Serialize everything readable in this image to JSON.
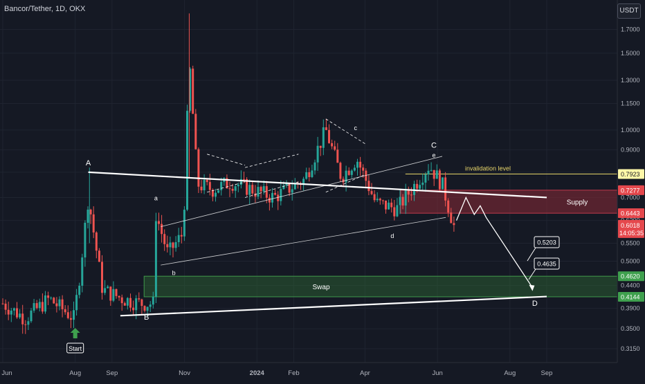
{
  "header": {
    "title": "Bancor/Tether, 1D, OKX",
    "currency_button": "USDT"
  },
  "colors": {
    "background": "#151924",
    "grid": "#1f2430",
    "axis_text": "#b2b5be",
    "candle_up": "#26a69a",
    "candle_down": "#ef5350",
    "supply_zone": "#8b2a36",
    "swap_zone": "#2e6b35",
    "invalidation_line": "#e8d66a",
    "wave_lines": "#ffffff"
  },
  "chart_data": {
    "type": "candlestick",
    "title": "Bancor/Tether, 1D, OKX",
    "scale": "log",
    "y_ticks": [
      "1.7000",
      "1.5000",
      "1.3000",
      "1.1500",
      "1.0000",
      "0.9000",
      "0.8000",
      "0.7000",
      "0.6200",
      "0.5500",
      "0.5000",
      "0.4400",
      "0.3900",
      "0.3500",
      "0.3150"
    ],
    "x_ticks": [
      "Jun",
      "Aug",
      "Sep",
      "Nov",
      "2024",
      "Feb",
      "Apr",
      "Jun",
      "Aug",
      "Sep"
    ],
    "price_samples": [
      [
        "2023-06-01",
        0.4
      ],
      [
        "2023-06-20",
        0.37
      ],
      [
        "2023-07-10",
        0.41
      ],
      [
        "2023-07-31",
        0.37
      ],
      [
        "2023-08-05",
        0.47
      ],
      [
        "2023-08-12",
        0.7
      ],
      [
        "2023-08-24",
        0.43
      ],
      [
        "2023-09-10",
        0.41
      ],
      [
        "2023-09-25",
        0.4
      ],
      [
        "2023-10-06",
        0.4
      ],
      [
        "2023-10-08",
        0.64
      ],
      [
        "2023-10-18",
        0.52
      ],
      [
        "2023-10-31",
        0.58
      ],
      [
        "2023-11-05",
        1.45
      ],
      [
        "2023-11-12",
        0.75
      ],
      [
        "2023-11-25",
        0.73
      ],
      [
        "2023-12-10",
        0.76
      ],
      [
        "2023-12-28",
        0.73
      ],
      [
        "2024-01-15",
        0.7
      ],
      [
        "2024-02-10",
        0.77
      ],
      [
        "2024-02-28",
        1.0
      ],
      [
        "2024-03-12",
        0.78
      ],
      [
        "2024-03-25",
        0.86
      ],
      [
        "2024-04-10",
        0.68
      ],
      [
        "2024-04-28",
        0.66
      ],
      [
        "2024-05-25",
        0.83
      ],
      [
        "2024-06-05",
        0.75
      ],
      [
        "2024-06-15",
        0.6
      ]
    ],
    "last_price": "0.6018",
    "countdown": "14:05:35",
    "price_labels": [
      "0.7923",
      "0.7277",
      "0.6443",
      "0.4620",
      "0.4144"
    ],
    "horizontal_levels": [
      {
        "label": "invalidation level",
        "value": 0.7923
      }
    ],
    "zones": [
      {
        "label": "Supply",
        "from": 0.6443,
        "to": 0.7277
      },
      {
        "label": "Swap",
        "from": 0.4144,
        "to": 0.462
      }
    ],
    "annotations": [
      "A",
      "B",
      "C",
      "D",
      "a",
      "b",
      "c",
      "d",
      "e",
      "Start"
    ],
    "targets": [
      "0.5203",
      "0.4635"
    ]
  }
}
